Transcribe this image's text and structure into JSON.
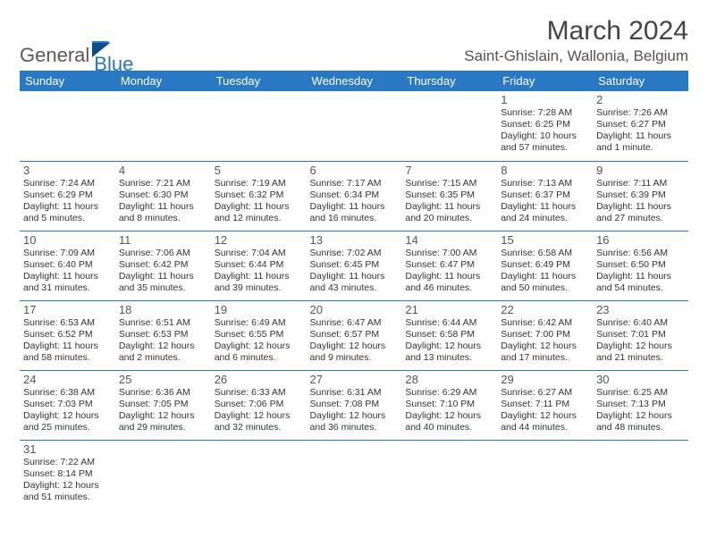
{
  "logo": {
    "text1": "General",
    "text2": "Blue"
  },
  "title": "March 2024",
  "location": "Saint-Ghislain, Wallonia, Belgium",
  "colors": {
    "header_bg": "#2978c4",
    "header_fg": "#ffffff",
    "rule": "#2978c4"
  },
  "day_labels": [
    "Sunday",
    "Monday",
    "Tuesday",
    "Wednesday",
    "Thursday",
    "Friday",
    "Saturday"
  ],
  "weeks": [
    [
      null,
      null,
      null,
      null,
      null,
      {
        "n": "1",
        "sr": "Sunrise: 7:28 AM",
        "ss": "Sunset: 6:25 PM",
        "dl": "Daylight: 10 hours and 57 minutes."
      },
      {
        "n": "2",
        "sr": "Sunrise: 7:26 AM",
        "ss": "Sunset: 6:27 PM",
        "dl": "Daylight: 11 hours and 1 minute."
      }
    ],
    [
      {
        "n": "3",
        "sr": "Sunrise: 7:24 AM",
        "ss": "Sunset: 6:29 PM",
        "dl": "Daylight: 11 hours and 5 minutes."
      },
      {
        "n": "4",
        "sr": "Sunrise: 7:21 AM",
        "ss": "Sunset: 6:30 PM",
        "dl": "Daylight: 11 hours and 8 minutes."
      },
      {
        "n": "5",
        "sr": "Sunrise: 7:19 AM",
        "ss": "Sunset: 6:32 PM",
        "dl": "Daylight: 11 hours and 12 minutes."
      },
      {
        "n": "6",
        "sr": "Sunrise: 7:17 AM",
        "ss": "Sunset: 6:34 PM",
        "dl": "Daylight: 11 hours and 16 minutes."
      },
      {
        "n": "7",
        "sr": "Sunrise: 7:15 AM",
        "ss": "Sunset: 6:35 PM",
        "dl": "Daylight: 11 hours and 20 minutes."
      },
      {
        "n": "8",
        "sr": "Sunrise: 7:13 AM",
        "ss": "Sunset: 6:37 PM",
        "dl": "Daylight: 11 hours and 24 minutes."
      },
      {
        "n": "9",
        "sr": "Sunrise: 7:11 AM",
        "ss": "Sunset: 6:39 PM",
        "dl": "Daylight: 11 hours and 27 minutes."
      }
    ],
    [
      {
        "n": "10",
        "sr": "Sunrise: 7:09 AM",
        "ss": "Sunset: 6:40 PM",
        "dl": "Daylight: 11 hours and 31 minutes."
      },
      {
        "n": "11",
        "sr": "Sunrise: 7:06 AM",
        "ss": "Sunset: 6:42 PM",
        "dl": "Daylight: 11 hours and 35 minutes."
      },
      {
        "n": "12",
        "sr": "Sunrise: 7:04 AM",
        "ss": "Sunset: 6:44 PM",
        "dl": "Daylight: 11 hours and 39 minutes."
      },
      {
        "n": "13",
        "sr": "Sunrise: 7:02 AM",
        "ss": "Sunset: 6:45 PM",
        "dl": "Daylight: 11 hours and 43 minutes."
      },
      {
        "n": "14",
        "sr": "Sunrise: 7:00 AM",
        "ss": "Sunset: 6:47 PM",
        "dl": "Daylight: 11 hours and 46 minutes."
      },
      {
        "n": "15",
        "sr": "Sunrise: 6:58 AM",
        "ss": "Sunset: 6:49 PM",
        "dl": "Daylight: 11 hours and 50 minutes."
      },
      {
        "n": "16",
        "sr": "Sunrise: 6:56 AM",
        "ss": "Sunset: 6:50 PM",
        "dl": "Daylight: 11 hours and 54 minutes."
      }
    ],
    [
      {
        "n": "17",
        "sr": "Sunrise: 6:53 AM",
        "ss": "Sunset: 6:52 PM",
        "dl": "Daylight: 11 hours and 58 minutes."
      },
      {
        "n": "18",
        "sr": "Sunrise: 6:51 AM",
        "ss": "Sunset: 6:53 PM",
        "dl": "Daylight: 12 hours and 2 minutes."
      },
      {
        "n": "19",
        "sr": "Sunrise: 6:49 AM",
        "ss": "Sunset: 6:55 PM",
        "dl": "Daylight: 12 hours and 6 minutes."
      },
      {
        "n": "20",
        "sr": "Sunrise: 6:47 AM",
        "ss": "Sunset: 6:57 PM",
        "dl": "Daylight: 12 hours and 9 minutes."
      },
      {
        "n": "21",
        "sr": "Sunrise: 6:44 AM",
        "ss": "Sunset: 6:58 PM",
        "dl": "Daylight: 12 hours and 13 minutes."
      },
      {
        "n": "22",
        "sr": "Sunrise: 6:42 AM",
        "ss": "Sunset: 7:00 PM",
        "dl": "Daylight: 12 hours and 17 minutes."
      },
      {
        "n": "23",
        "sr": "Sunrise: 6:40 AM",
        "ss": "Sunset: 7:01 PM",
        "dl": "Daylight: 12 hours and 21 minutes."
      }
    ],
    [
      {
        "n": "24",
        "sr": "Sunrise: 6:38 AM",
        "ss": "Sunset: 7:03 PM",
        "dl": "Daylight: 12 hours and 25 minutes."
      },
      {
        "n": "25",
        "sr": "Sunrise: 6:36 AM",
        "ss": "Sunset: 7:05 PM",
        "dl": "Daylight: 12 hours and 29 minutes."
      },
      {
        "n": "26",
        "sr": "Sunrise: 6:33 AM",
        "ss": "Sunset: 7:06 PM",
        "dl": "Daylight: 12 hours and 32 minutes."
      },
      {
        "n": "27",
        "sr": "Sunrise: 6:31 AM",
        "ss": "Sunset: 7:08 PM",
        "dl": "Daylight: 12 hours and 36 minutes."
      },
      {
        "n": "28",
        "sr": "Sunrise: 6:29 AM",
        "ss": "Sunset: 7:10 PM",
        "dl": "Daylight: 12 hours and 40 minutes."
      },
      {
        "n": "29",
        "sr": "Sunrise: 6:27 AM",
        "ss": "Sunset: 7:11 PM",
        "dl": "Daylight: 12 hours and 44 minutes."
      },
      {
        "n": "30",
        "sr": "Sunrise: 6:25 AM",
        "ss": "Sunset: 7:13 PM",
        "dl": "Daylight: 12 hours and 48 minutes."
      }
    ],
    [
      {
        "n": "31",
        "sr": "Sunrise: 7:22 AM",
        "ss": "Sunset: 8:14 PM",
        "dl": "Daylight: 12 hours and 51 minutes."
      },
      null,
      null,
      null,
      null,
      null,
      null
    ]
  ]
}
